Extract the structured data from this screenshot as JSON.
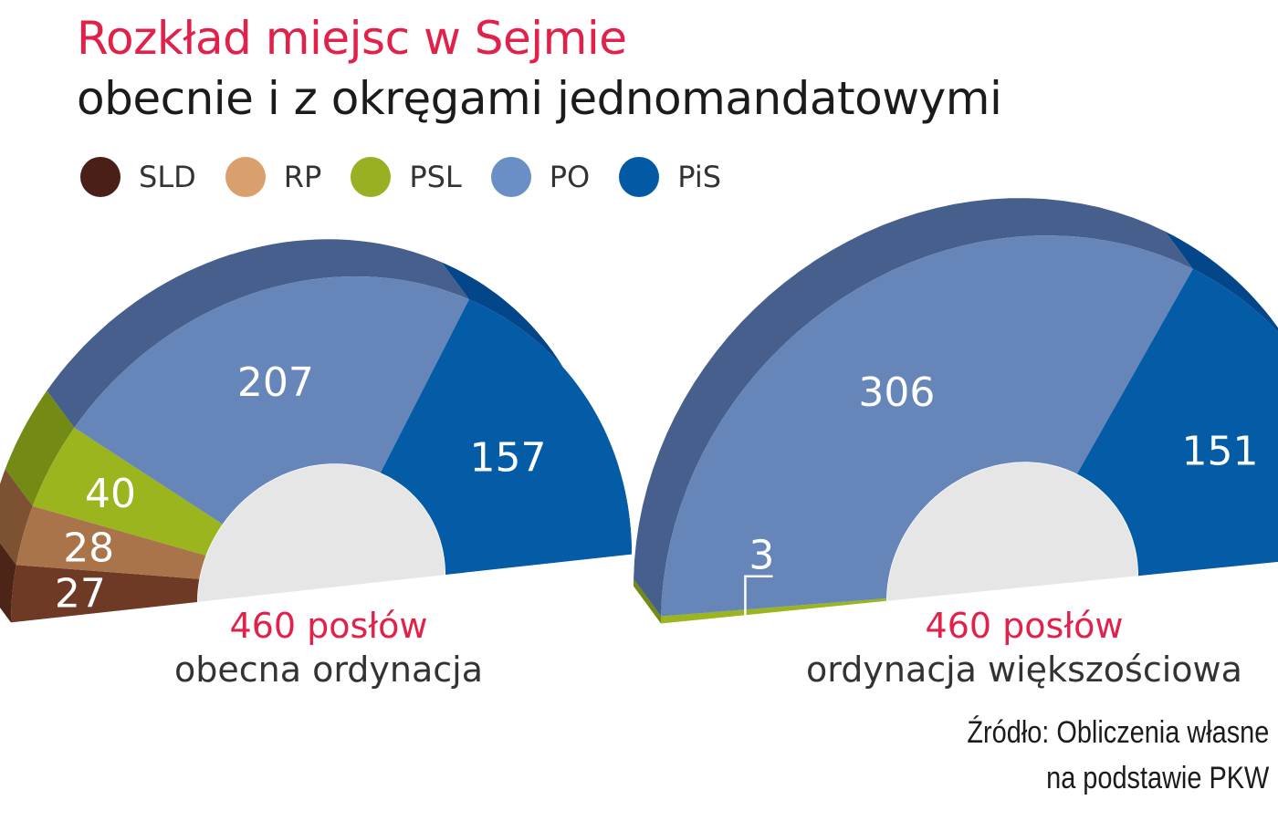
{
  "header": {
    "title": "Rozkład miejsc w Sejmie",
    "subtitle": "obecnie i z okręgami jednomandatowymi"
  },
  "legend": [
    {
      "label": "SLD",
      "color": "#4a1f17"
    },
    {
      "label": "RP",
      "color": "#d9a06e"
    },
    {
      "label": "PSL",
      "color": "#98b021"
    },
    {
      "label": "PO",
      "color": "#6a8fc6"
    },
    {
      "label": "PiS",
      "color": "#0359a4"
    }
  ],
  "charts": [
    {
      "total": "460 posłów",
      "ordinance": "obecna ordynacja"
    },
    {
      "total": "460 posłów",
      "ordinance": "ordynacja większościowa"
    }
  ],
  "source": {
    "line1": "Źródło: Obliczenia własne",
    "line2": "na podstawie PKW"
  },
  "chart_data": [
    {
      "type": "pie",
      "title": "obecna ordynacja",
      "total": 460,
      "categories": [
        "SLD",
        "RP",
        "PSL",
        "PO",
        "PiS"
      ],
      "values": [
        27,
        28,
        40,
        207,
        157
      ],
      "colors": [
        "#6e3a26",
        "#a9744a",
        "#9ab51e",
        "#6686ba",
        "#045ba6"
      ],
      "side_colors": [
        "#4c2518",
        "#7d5232",
        "#738a14",
        "#475f8c",
        "#04468a"
      ],
      "legend": "top"
    },
    {
      "type": "pie",
      "title": "ordynacja większościowa",
      "total": 460,
      "categories": [
        "PSL",
        "PO",
        "PiS"
      ],
      "values": [
        3,
        306,
        151
      ],
      "colors": [
        "#9ab51e",
        "#6686ba",
        "#045ba6"
      ],
      "side_colors": [
        "#738a14",
        "#475f8c",
        "#04468a"
      ],
      "legend": "top"
    }
  ]
}
